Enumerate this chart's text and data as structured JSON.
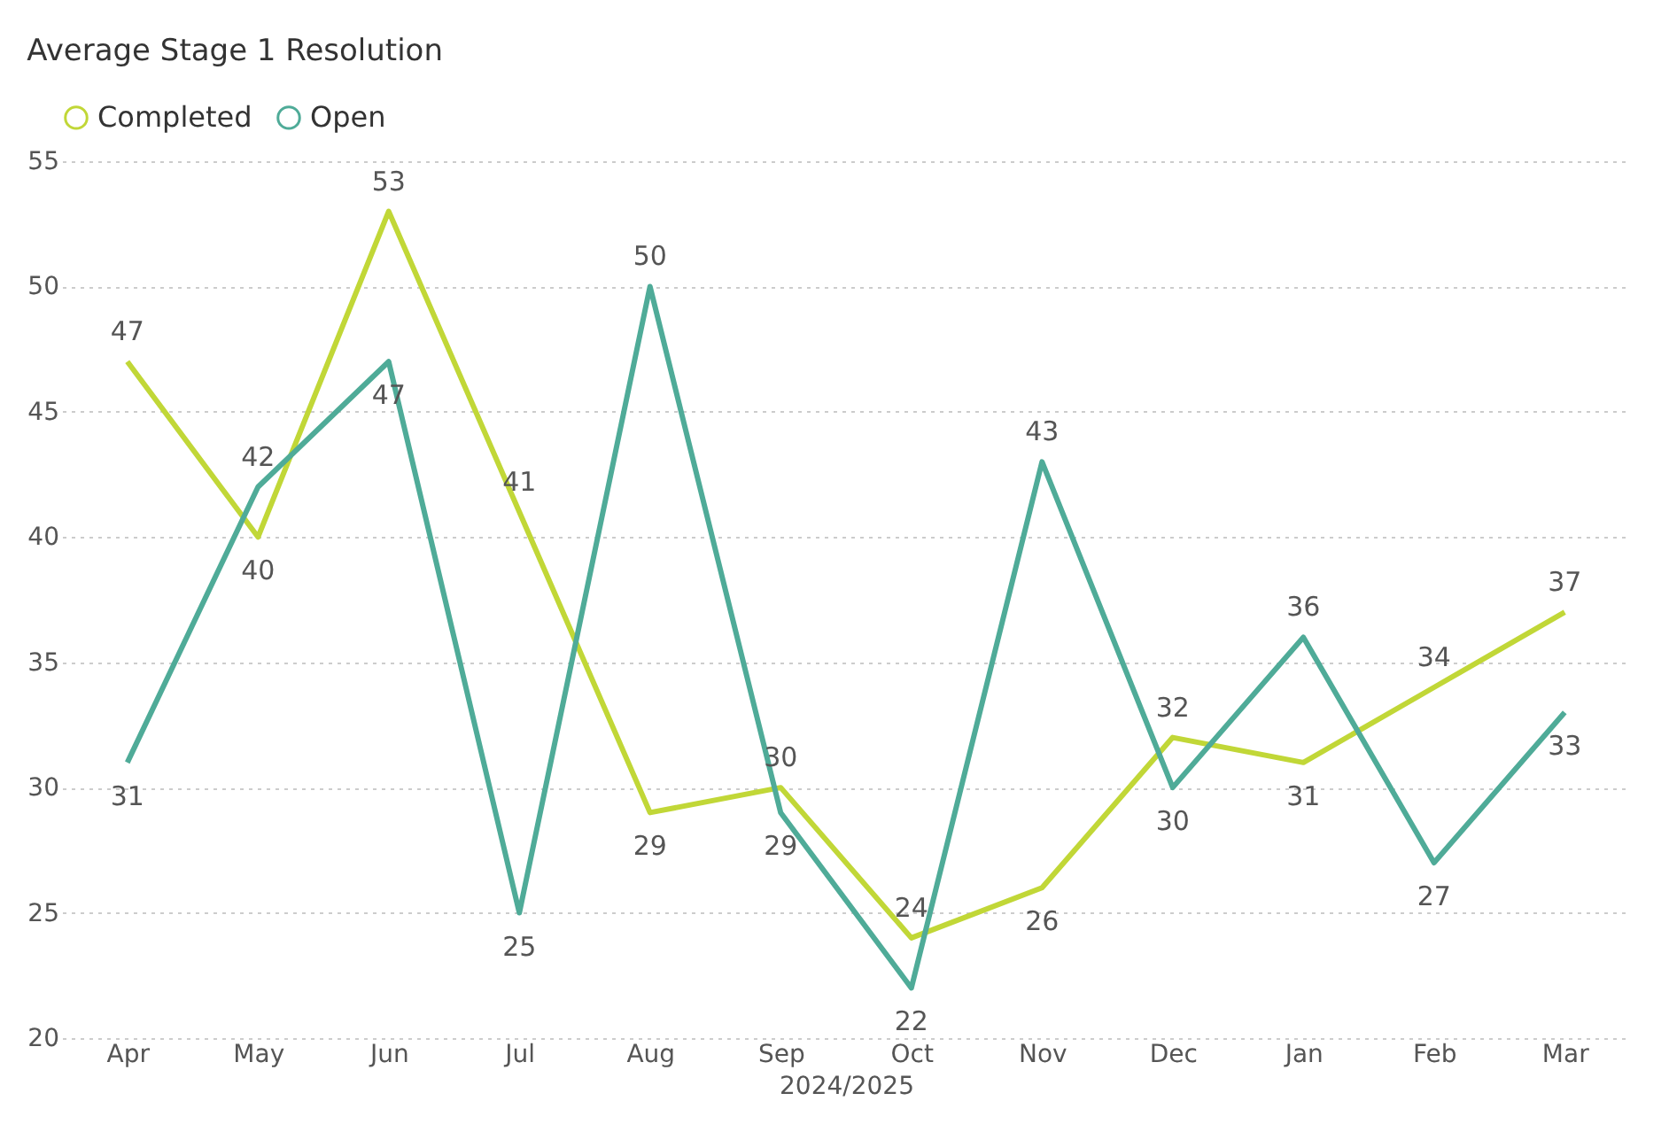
{
  "chart_data": {
    "type": "line",
    "title": "Average Stage 1 Resolution",
    "xlabel": "2024/2025",
    "categories": [
      "Apr",
      "May",
      "Jun",
      "Jul",
      "Aug",
      "Sep",
      "Oct",
      "Nov",
      "Dec",
      "Jan",
      "Feb",
      "Mar"
    ],
    "series": [
      {
        "name": "Completed",
        "color": "#c1d737",
        "values": [
          47,
          40,
          53,
          41,
          29,
          30,
          24,
          26,
          32,
          31,
          34,
          37
        ]
      },
      {
        "name": "Open",
        "color": "#4fab98",
        "values": [
          31,
          42,
          47,
          25,
          50,
          29,
          22,
          43,
          30,
          36,
          27,
          33
        ]
      }
    ],
    "ylim": [
      20,
      55
    ],
    "yticks": [
      20,
      25,
      30,
      35,
      40,
      45,
      50,
      55
    ],
    "grid": "y",
    "legend": "top left",
    "data_labels": true,
    "marker": "none",
    "line_style": "solid"
  }
}
